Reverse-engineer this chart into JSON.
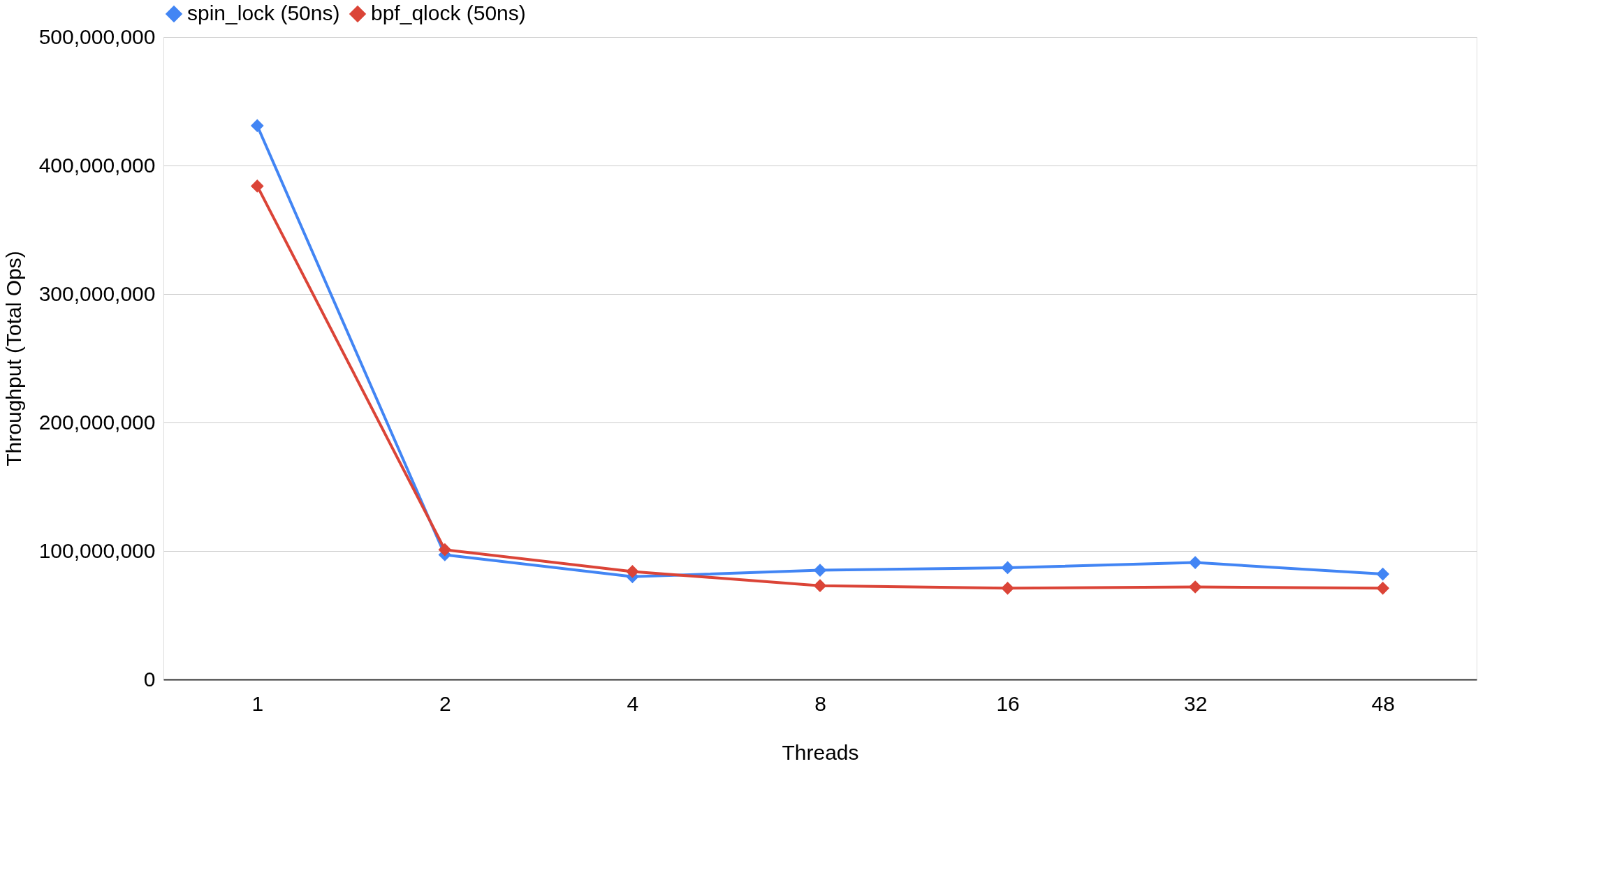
{
  "chart_data": {
    "type": "line",
    "xlabel": "Threads",
    "ylabel": "Throughput (Total Ops)",
    "categories": [
      "1",
      "2",
      "4",
      "8",
      "16",
      "32",
      "48"
    ],
    "series": [
      {
        "name": "spin_lock (50ns)",
        "color": "#4285f4",
        "values": [
          431000000,
          97000000,
          80000000,
          85000000,
          87000000,
          91000000,
          82000000
        ]
      },
      {
        "name": "bpf_qlock (50ns)",
        "color": "#db4437",
        "values": [
          384000000,
          101000000,
          84000000,
          73000000,
          71000000,
          72000000,
          71000000
        ]
      }
    ],
    "ylim": [
      0,
      500000000
    ],
    "yticks": [
      {
        "value": 0,
        "label": "0"
      },
      {
        "value": 100000000,
        "label": "100,000,000"
      },
      {
        "value": 200000000,
        "label": "200,000,000"
      },
      {
        "value": 300000000,
        "label": "300,000,000"
      },
      {
        "value": 400000000,
        "label": "400,000,000"
      },
      {
        "value": 500000000,
        "label": "500,000,000"
      }
    ],
    "grid": "y",
    "legend": "top",
    "marker": "diamond",
    "line_style": "solid"
  }
}
